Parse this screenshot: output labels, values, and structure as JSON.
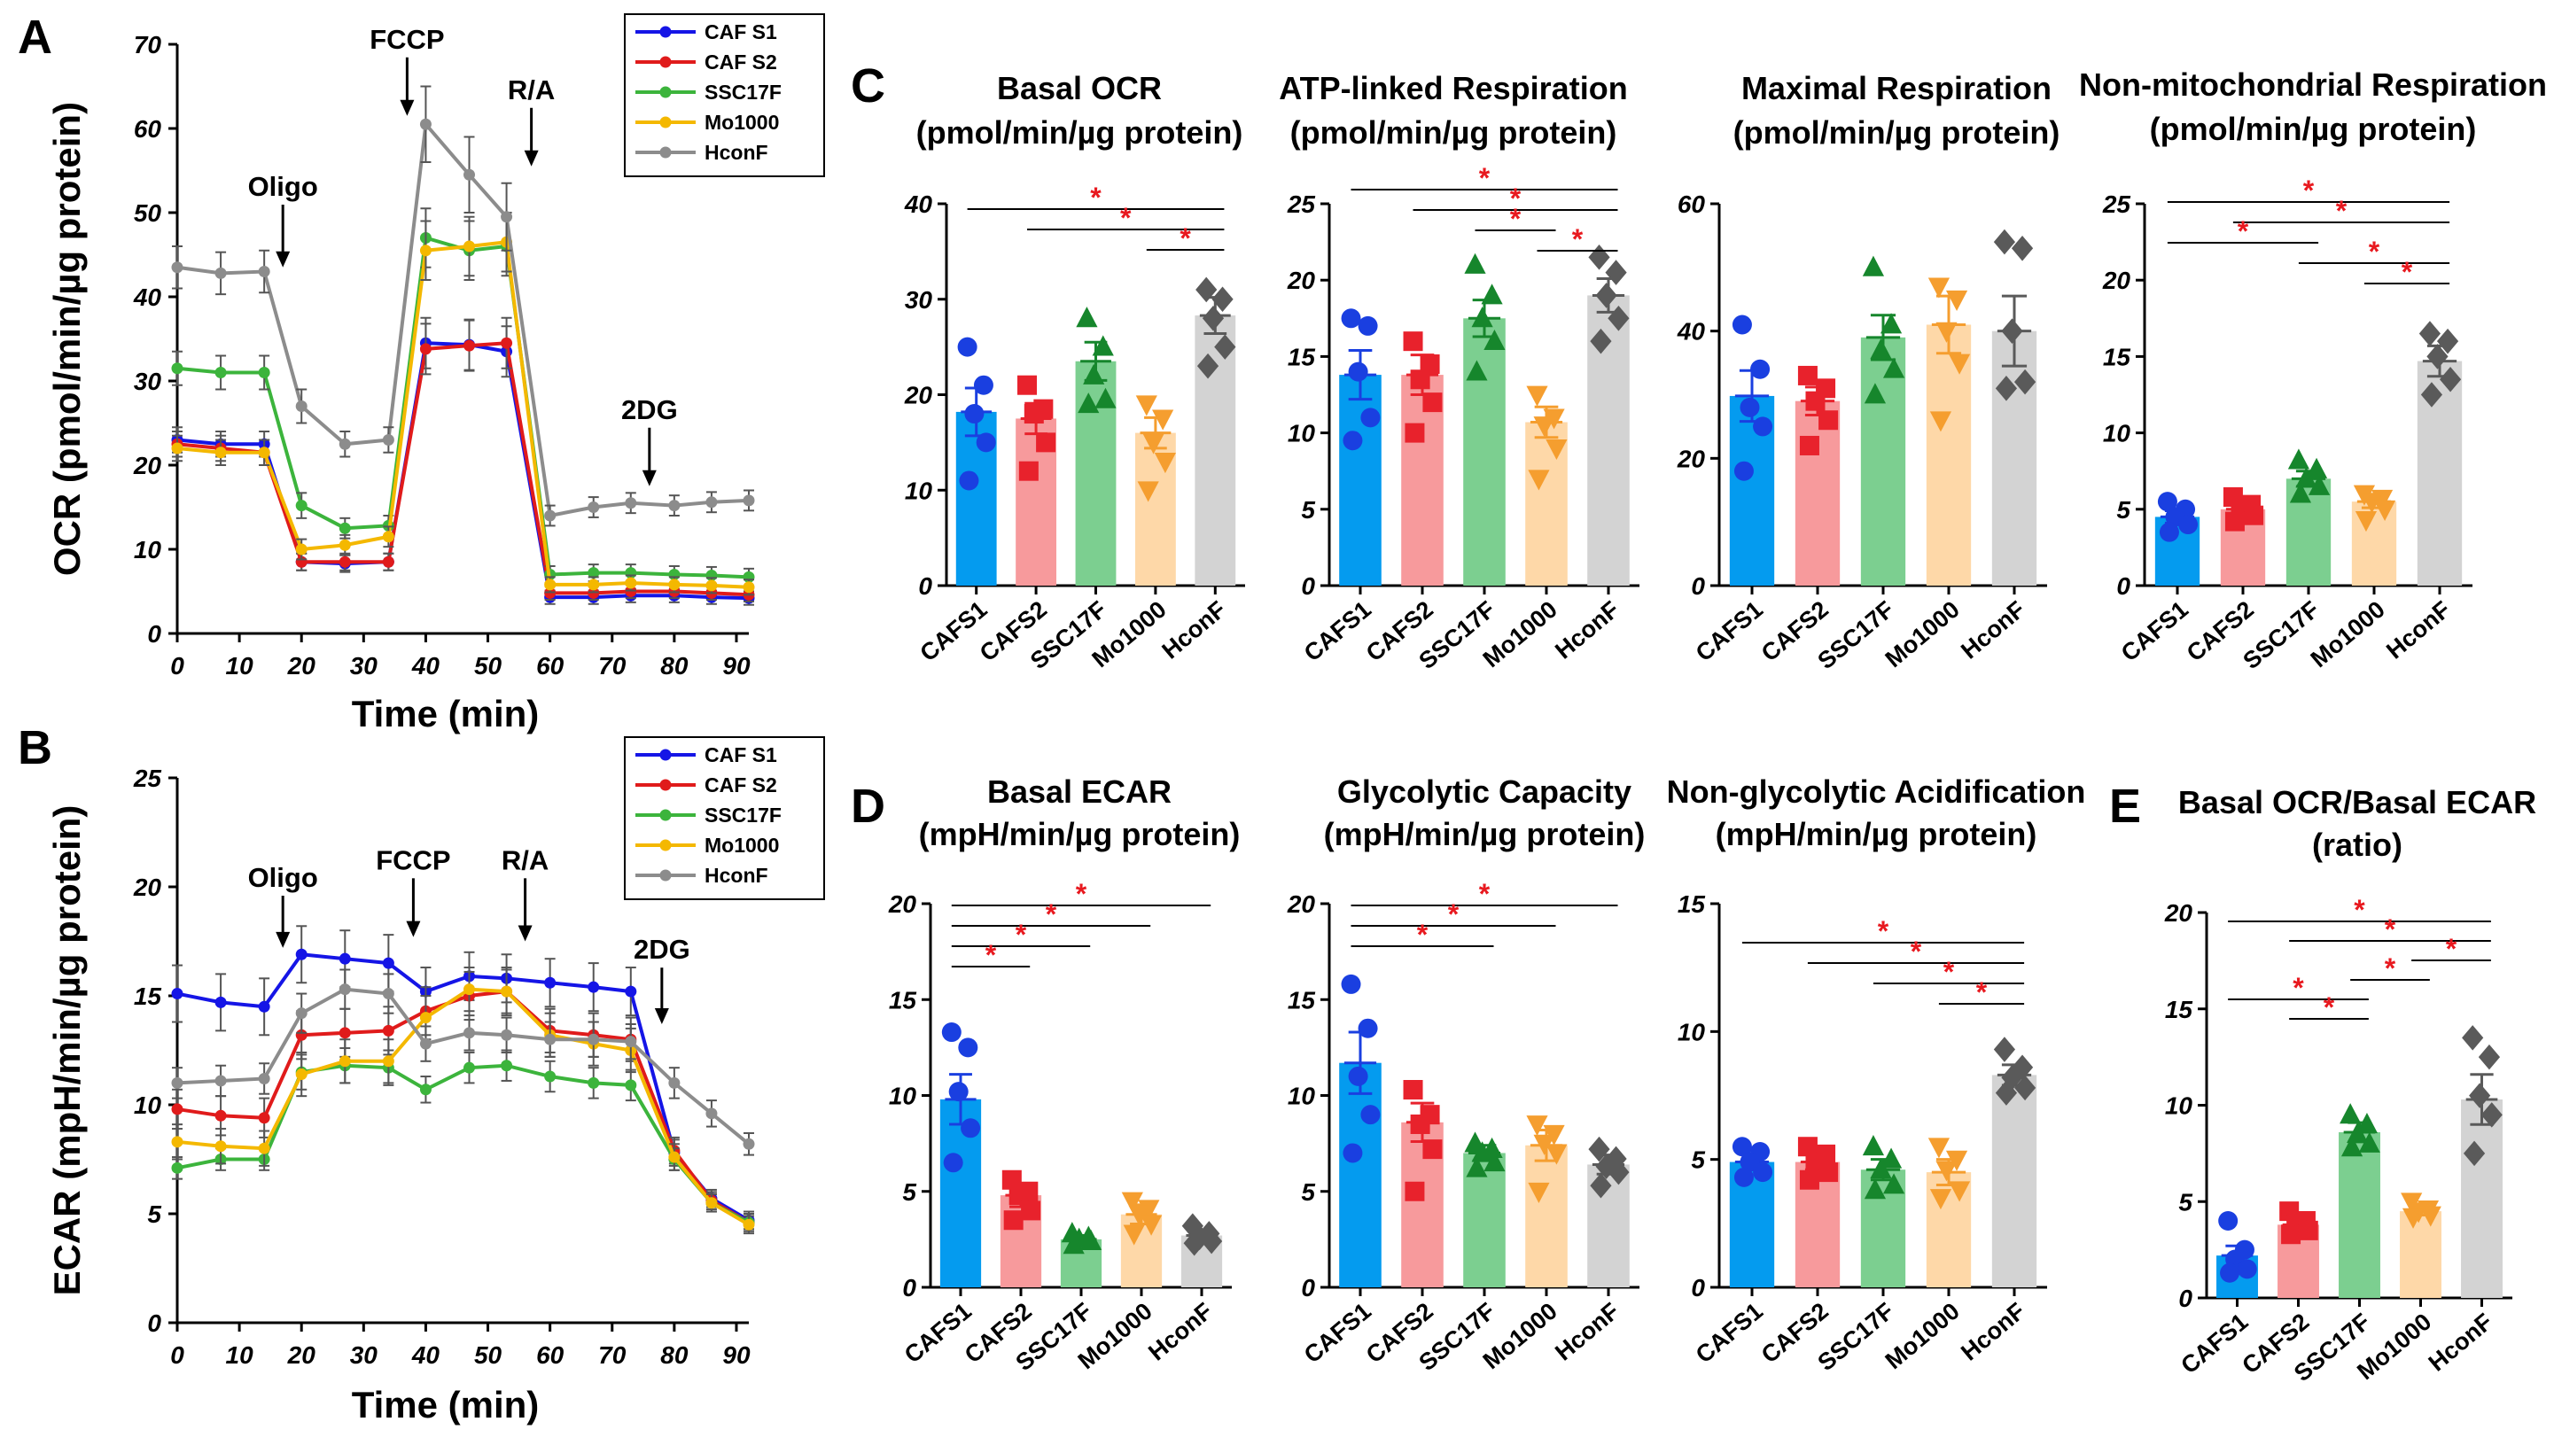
{
  "panel_labels": {
    "A": "A",
    "B": "B",
    "C": "C",
    "D": "D",
    "E": "E"
  },
  "chart_data": [
    {
      "id": "A",
      "type": "line",
      "title": "",
      "xlabel": "Time (min)",
      "ylabel": "OCR (pmol/min/µg protein)",
      "xlim": [
        0,
        92
      ],
      "ylim": [
        0,
        70
      ],
      "xticks": [
        "0",
        "10",
        "20",
        "30",
        "40",
        "50",
        "60",
        "70",
        "80",
        "90"
      ],
      "yticks": [
        "0",
        "10",
        "20",
        "30",
        "40",
        "50",
        "60",
        "70"
      ],
      "x": [
        0,
        7,
        14,
        20,
        27,
        34,
        40,
        47,
        53,
        60,
        67,
        73,
        80,
        86,
        92
      ],
      "series": [
        {
          "name": "CAF S1",
          "color": "#1515e6",
          "values": [
            23,
            22.5,
            22.5,
            8.5,
            8.3,
            8.5,
            34.5,
            34.3,
            33.5,
            4.3,
            4.3,
            4.5,
            4.5,
            4.3,
            4.2
          ],
          "err": [
            1.5,
            1.5,
            1.5,
            1,
            1,
            1,
            3,
            3,
            3,
            0.8,
            0.8,
            0.8,
            0.8,
            0.8,
            0.8
          ]
        },
        {
          "name": "CAF S2",
          "color": "#e01b1b",
          "values": [
            22.5,
            22,
            21.5,
            8.5,
            8.5,
            8.5,
            33.8,
            34.2,
            34.5,
            4.8,
            4.8,
            5,
            5,
            4.8,
            4.6
          ],
          "err": [
            1.5,
            1.5,
            1.5,
            1,
            1,
            1,
            3,
            3,
            3,
            0.8,
            0.8,
            0.8,
            0.8,
            0.8,
            0.8
          ]
        },
        {
          "name": "SSC17F",
          "color": "#3cb43c",
          "values": [
            31.5,
            31,
            31,
            15.2,
            12.5,
            12.8,
            47,
            45.5,
            46,
            7,
            7.2,
            7.2,
            7,
            6.9,
            6.7
          ],
          "err": [
            2,
            2,
            2,
            1.5,
            1.2,
            1.2,
            3.5,
            3.5,
            3.5,
            1,
            1,
            1,
            1,
            1,
            1
          ]
        },
        {
          "name": "Mo1000",
          "color": "#f4b800",
          "values": [
            22,
            21.5,
            21.5,
            10,
            10.5,
            11.5,
            45.5,
            46,
            46.5,
            5.8,
            5.8,
            6,
            5.8,
            5.7,
            5.5
          ],
          "err": [
            1.5,
            1.5,
            1.5,
            1.2,
            1.2,
            1.2,
            3.5,
            3.5,
            3.5,
            0.9,
            0.9,
            0.9,
            0.9,
            0.9,
            0.9
          ]
        },
        {
          "name": "HconF",
          "color": "#8c8c8c",
          "values": [
            43.5,
            42.8,
            43,
            27,
            22.5,
            23,
            60.5,
            54.5,
            49.5,
            14,
            15,
            15.5,
            15.2,
            15.6,
            15.8
          ],
          "err": [
            2.5,
            2.5,
            2.5,
            2,
            1.5,
            1.5,
            4.5,
            4.5,
            4,
            1.2,
            1.2,
            1.2,
            1.2,
            1.2,
            1.2
          ]
        }
      ],
      "annotations": [
        {
          "label": "Oligo",
          "x": 17,
          "y": 43.5,
          "text_y": 52
        },
        {
          "label": "FCCP",
          "x": 37,
          "y": 61.5,
          "text_y": 69.5
        },
        {
          "label": "R/A",
          "x": 57,
          "y": 55.5,
          "text_y": 63.5
        },
        {
          "label": "2DG",
          "x": 76,
          "y": 17.5,
          "text_y": 25.5
        }
      ],
      "legend_position": "top-right"
    },
    {
      "id": "B",
      "type": "line",
      "title": "",
      "xlabel": "Time (min)",
      "ylabel": "ECAR (mpH/min/µg protein)",
      "xlim": [
        0,
        92
      ],
      "ylim": [
        0,
        25
      ],
      "xticks": [
        "0",
        "10",
        "20",
        "30",
        "40",
        "50",
        "60",
        "70",
        "80",
        "90"
      ],
      "yticks": [
        "0",
        "5",
        "10",
        "15",
        "20",
        "25"
      ],
      "x": [
        0,
        7,
        14,
        20,
        27,
        34,
        40,
        47,
        53,
        60,
        67,
        73,
        80,
        86,
        92
      ],
      "series": [
        {
          "name": "CAF S1",
          "color": "#1515e6",
          "values": [
            15.1,
            14.7,
            14.5,
            16.9,
            16.7,
            16.5,
            15.2,
            15.9,
            15.8,
            15.6,
            15.4,
            15.2,
            7.8,
            5.7,
            4.7
          ],
          "err": [
            1.3,
            1.3,
            1.3,
            1.3,
            1.3,
            1.3,
            1.1,
            1.1,
            1.1,
            1.1,
            1.1,
            1.1,
            0.6,
            0.4,
            0.4
          ]
        },
        {
          "name": "CAF S2",
          "color": "#e01b1b",
          "values": [
            9.8,
            9.5,
            9.4,
            13.2,
            13.3,
            13.4,
            14.3,
            15.0,
            15.2,
            13.4,
            13.2,
            13.0,
            7.9,
            5.6,
            4.6
          ],
          "err": [
            0.9,
            0.9,
            0.9,
            1.1,
            1.1,
            1.1,
            1.1,
            1.1,
            1.1,
            1.0,
            1.0,
            1.0,
            0.6,
            0.4,
            0.4
          ]
        },
        {
          "name": "SSC17F",
          "color": "#3cb43c",
          "values": [
            7.1,
            7.5,
            7.5,
            11.5,
            11.8,
            11.7,
            10.7,
            11.7,
            11.8,
            11.3,
            11.0,
            10.9,
            7.5,
            5.5,
            4.6
          ],
          "err": [
            0.5,
            0.5,
            0.5,
            0.8,
            0.8,
            0.8,
            0.6,
            0.7,
            0.7,
            0.7,
            0.7,
            0.7,
            0.5,
            0.4,
            0.4
          ]
        },
        {
          "name": "Mo1000",
          "color": "#f4b800",
          "values": [
            8.3,
            8.1,
            8.0,
            11.4,
            12.0,
            12.0,
            14.0,
            15.3,
            15.2,
            13.2,
            12.8,
            12.5,
            7.6,
            5.5,
            4.5
          ],
          "err": [
            0.8,
            0.8,
            0.8,
            1.0,
            1.0,
            1.0,
            1.0,
            1.0,
            1.0,
            1.0,
            1.0,
            1.0,
            0.6,
            0.4,
            0.4
          ]
        },
        {
          "name": "HconF",
          "color": "#8c8c8c",
          "values": [
            11.0,
            11.1,
            11.2,
            14.2,
            15.3,
            15.1,
            12.8,
            13.3,
            13.2,
            13.0,
            13.0,
            12.9,
            11.0,
            9.6,
            8.2
          ],
          "err": [
            0.7,
            0.7,
            0.7,
            0.9,
            0.9,
            0.9,
            0.8,
            0.8,
            0.8,
            0.8,
            0.8,
            0.8,
            0.7,
            0.6,
            0.5
          ]
        }
      ],
      "annotations": [
        {
          "label": "Oligo",
          "x": 17,
          "y": 17.2,
          "text_y": 20.0
        },
        {
          "label": "FCCP",
          "x": 38,
          "y": 17.7,
          "text_y": 20.8
        },
        {
          "label": "R/A",
          "x": 56,
          "y": 17.5,
          "text_y": 20.8
        },
        {
          "label": "2DG",
          "x": 78,
          "y": 13.7,
          "text_y": 16.7
        }
      ],
      "legend_position": "top-right"
    },
    {
      "id": "C1",
      "type": "bar",
      "title": [
        "Basal OCR",
        "(pmol/min/µg protein)"
      ],
      "categories": [
        "CAFS1",
        "CAFS2",
        "SSC17F",
        "Mo1000",
        "HconF"
      ],
      "values": [
        18.2,
        17.5,
        23.5,
        16.0,
        28.3
      ],
      "sem": [
        2.5,
        1.6,
        2.0,
        1.6,
        1.9
      ],
      "points": [
        [
          25,
          21,
          18,
          15,
          11
        ],
        [
          21,
          18.5,
          18,
          15,
          12
        ],
        [
          28,
          25,
          22,
          19.5,
          19
        ],
        [
          19,
          17.5,
          15,
          13,
          10
        ],
        [
          31,
          30,
          28,
          25,
          23
        ]
      ],
      "ylim": [
        0,
        40
      ],
      "yticks": [
        "0",
        "10",
        "20",
        "30",
        "40"
      ],
      "sig": [
        [
          0,
          4
        ],
        [
          1,
          4
        ],
        [
          3,
          4
        ]
      ]
    },
    {
      "id": "C2",
      "type": "bar",
      "title": [
        "ATP-linked Respiration",
        "(pmol/min/µg protein)"
      ],
      "categories": [
        "CAFS1",
        "CAFS2",
        "SSC17F",
        "Mo1000",
        "HconF"
      ],
      "values": [
        13.8,
        13.8,
        17.5,
        10.7,
        19.0
      ],
      "sem": [
        1.6,
        1.3,
        1.2,
        1.0,
        1.1
      ],
      "points": [
        [
          17.5,
          17,
          14,
          11,
          9.5
        ],
        [
          16,
          14.5,
          13.5,
          12,
          10
        ],
        [
          21,
          19,
          17.5,
          16,
          14
        ],
        [
          12.5,
          11,
          10.5,
          9,
          7
        ],
        [
          21.5,
          20.5,
          19,
          17.5,
          16
        ]
      ],
      "ylim": [
        0,
        25
      ],
      "yticks": [
        "0",
        "5",
        "10",
        "15",
        "20",
        "25"
      ],
      "sig": [
        [
          0,
          4
        ],
        [
          1,
          4
        ],
        [
          2,
          3
        ],
        [
          3,
          4
        ]
      ]
    },
    {
      "id": "C3",
      "type": "bar",
      "title": [
        "Maximal Respiration",
        "(pmol/min/µg protein)"
      ],
      "categories": [
        "CAFS1",
        "CAFS2",
        "SSC17F",
        "Mo1000",
        "HconF"
      ],
      "values": [
        29.8,
        29.0,
        39.0,
        41.0,
        40.0
      ],
      "sem": [
        4.0,
        2.2,
        3.5,
        4.5,
        5.5
      ],
      "points": [
        [
          41,
          34,
          28,
          25,
          18
        ],
        [
          33,
          31,
          29,
          26,
          22
        ],
        [
          50,
          41,
          37,
          34,
          30
        ],
        [
          47,
          45,
          40,
          35,
          26
        ],
        [
          54,
          53,
          40,
          32,
          31
        ]
      ],
      "ylim": [
        0,
        60
      ],
      "yticks": [
        "0",
        "20",
        "40",
        "60"
      ],
      "sig": []
    },
    {
      "id": "C4",
      "type": "bar",
      "title": [
        "Non-mitochondrial Respiration",
        "(pmol/min/µg protein)"
      ],
      "categories": [
        "CAFS1",
        "CAFS2",
        "SSC17F",
        "Mo1000",
        "HconF"
      ],
      "values": [
        4.5,
        5.0,
        7.0,
        5.5,
        14.7
      ],
      "sem": [
        0.4,
        0.4,
        0.5,
        0.4,
        1.0
      ],
      "points": [
        [
          5.5,
          5,
          4.5,
          4,
          3.5
        ],
        [
          5.8,
          5.3,
          5,
          4.6,
          4.2
        ],
        [
          8.2,
          7.6,
          7,
          6.5,
          6
        ],
        [
          6,
          5.7,
          5.5,
          5,
          4.3
        ],
        [
          16.5,
          16,
          15,
          13.5,
          12.5
        ]
      ],
      "ylim": [
        0,
        25
      ],
      "yticks": [
        "0",
        "5",
        "10",
        "15",
        "20",
        "25"
      ],
      "sig": [
        [
          0,
          4
        ],
        [
          1,
          4
        ],
        [
          0,
          2
        ],
        [
          2,
          4
        ],
        [
          3,
          4
        ]
      ]
    },
    {
      "id": "D1",
      "type": "bar",
      "title": [
        "Basal ECAR",
        "(mpH/min/µg protein)"
      ],
      "categories": [
        "CAFS1",
        "CAFS2",
        "SSC17F",
        "Mo1000",
        "HconF"
      ],
      "values": [
        9.8,
        4.8,
        2.5,
        3.8,
        2.7
      ],
      "sem": [
        1.3,
        0.6,
        0.2,
        0.5,
        0.3
      ],
      "points": [
        [
          13.3,
          12.5,
          10.2,
          8.3,
          6.5
        ],
        [
          5.6,
          5,
          4.8,
          4,
          3.5
        ],
        [
          2.8,
          2.6,
          2.5,
          2.4,
          2.2
        ],
        [
          4.5,
          4.1,
          3.8,
          3.3,
          2.8
        ],
        [
          3.2,
          2.8,
          2.6,
          2.4,
          2.3
        ]
      ],
      "ylim": [
        0,
        20
      ],
      "yticks": [
        "0",
        "5",
        "10",
        "15",
        "20"
      ],
      "sig": [
        [
          0,
          4
        ],
        [
          0,
          3
        ],
        [
          0,
          2
        ],
        [
          0,
          1
        ]
      ]
    },
    {
      "id": "D2",
      "type": "bar",
      "title": [
        "Glycolytic Capacity",
        "(mpH/min/µg protein)"
      ],
      "categories": [
        "CAFS1",
        "CAFS2",
        "SSC17F",
        "Mo1000",
        "HconF"
      ],
      "values": [
        11.7,
        8.6,
        7.0,
        7.4,
        6.4
      ],
      "sem": [
        1.6,
        1.0,
        0.4,
        0.8,
        0.5
      ],
      "points": [
        [
          15.8,
          13.5,
          11,
          9,
          7
        ],
        [
          10.3,
          9,
          8.5,
          7.2,
          5
        ],
        [
          7.5,
          7.2,
          7,
          6.5,
          6.2
        ],
        [
          8.5,
          8,
          7.5,
          7,
          5
        ],
        [
          7.2,
          6.7,
          6.3,
          6,
          5.3
        ]
      ],
      "ylim": [
        0,
        20
      ],
      "yticks": [
        "0",
        "5",
        "10",
        "15",
        "20"
      ],
      "sig": [
        [
          0,
          4
        ],
        [
          0,
          3
        ],
        [
          0,
          2
        ]
      ]
    },
    {
      "id": "D3",
      "type": "bar",
      "title": [
        "Non-glycolytic Acidification",
        "(mpH/min/µg protein)"
      ],
      "categories": [
        "CAFS1",
        "CAFS2",
        "SSC17F",
        "Mo1000",
        "HconF"
      ],
      "values": [
        4.9,
        4.9,
        4.6,
        4.5,
        8.3
      ],
      "sem": [
        0.3,
        0.3,
        0.4,
        0.5,
        0.4
      ],
      "points": [
        [
          5.5,
          5.3,
          4.9,
          4.5,
          4.3
        ],
        [
          5.5,
          5.2,
          4.9,
          4.5,
          4.2
        ],
        [
          5.5,
          5,
          4.6,
          4,
          3.8
        ],
        [
          5.5,
          5,
          4.6,
          3.8,
          3.5
        ],
        [
          9.3,
          8.6,
          8.2,
          7.8,
          7.6
        ]
      ],
      "ylim": [
        0,
        15
      ],
      "yticks": [
        "0",
        "5",
        "10",
        "15"
      ],
      "sig": [
        [
          0,
          4
        ],
        [
          1,
          4
        ],
        [
          2,
          4
        ],
        [
          3,
          4
        ]
      ]
    },
    {
      "id": "E",
      "type": "bar",
      "title": [
        "Basal OCR/Basal ECAR",
        "(ratio)"
      ],
      "categories": [
        "CAFS1",
        "CAFS2",
        "SSC17F",
        "Mo1000",
        "HconF"
      ],
      "values": [
        2.2,
        3.8,
        8.6,
        4.5,
        10.3
      ],
      "sem": [
        0.5,
        0.4,
        0.5,
        0.2,
        1.3
      ],
      "points": [
        [
          4,
          2.5,
          2,
          1.5,
          1.3
        ],
        [
          4.5,
          4,
          3.8,
          3.5,
          3.3
        ],
        [
          9.5,
          9,
          8.5,
          8,
          7.8
        ],
        [
          5,
          4.6,
          4.5,
          4.3,
          4.2
        ],
        [
          13.5,
          12.5,
          10.5,
          9.5,
          7.5
        ]
      ],
      "ylim": [
        0,
        20
      ],
      "yticks": [
        "0",
        "5",
        "10",
        "15",
        "20"
      ],
      "sig": [
        [
          0,
          4
        ],
        [
          1,
          4
        ],
        [
          3,
          4
        ],
        [
          2,
          3
        ],
        [
          0,
          2
        ],
        [
          1,
          2
        ]
      ]
    }
  ]
}
